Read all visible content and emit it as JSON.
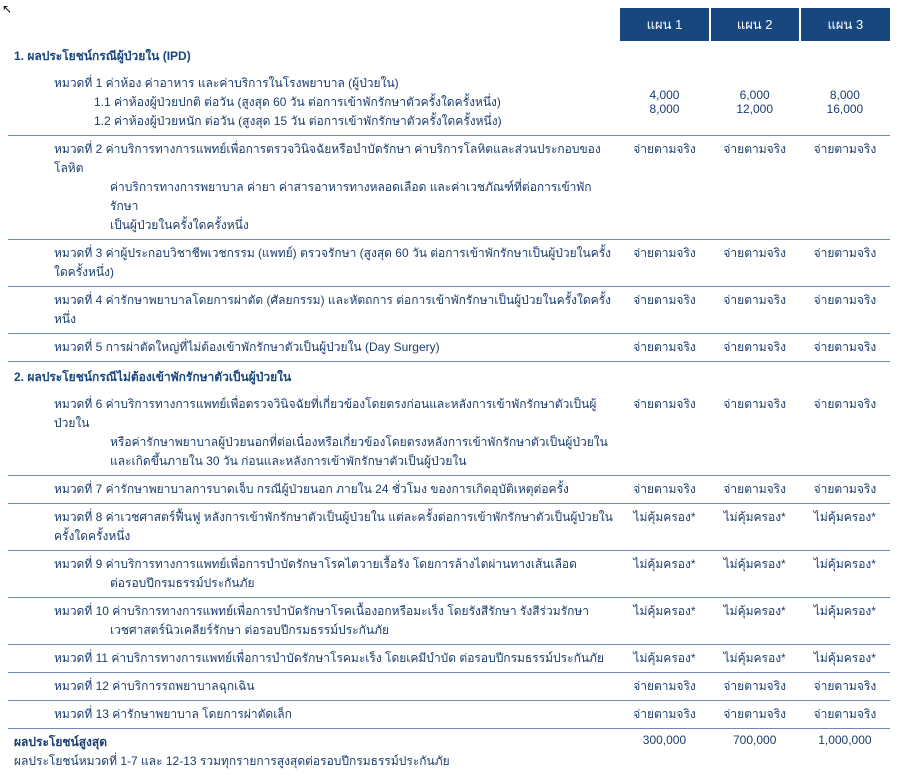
{
  "header": {
    "plan1": "แผน 1",
    "plan2": "แผน 2",
    "plan3": "แผน 3"
  },
  "section1": {
    "title": "1.  ผลประโยชน์กรณีผู้ป่วยใน (IPD)"
  },
  "r1": {
    "l1": "หมวดที่ 1 ค่าห้อง ค่าอาหาร และค่าบริการในโรงพยาบาล (ผู้ป่วยใน)",
    "l2": "1.1 ค่าห้องผู้ป่วยปกติ ต่อวัน (สูงสุด 60 วัน ต่อการเข้าพักรักษาตัวครั้งใดครั้งหนึ่ง)",
    "l3": "1.2 ค่าห้องผู้ป่วยหนัก ต่อวัน (สูงสุด 15 วัน ต่อการเข้าพักรักษาตัวครั้งใดครั้งหนึ่ง)",
    "p1a": "4,000",
    "p2a": "6,000",
    "p3a": "8,000",
    "p1b": "8,000",
    "p2b": "12,000",
    "p3b": "16,000"
  },
  "r2": {
    "l1": "หมวดที่ 2 ค่าบริการทางการแพทย์เพื่อการตรวจวินิจฉัยหรือบำบัดรักษา ค่าบริการโลหิตและส่วนประกอบของโลหิต",
    "l2": "ค่าบริการทางการพยาบาล ค่ายา ค่าสารอาหารทางหลอดเลือด  และค่าเวชภัณฑ์ที่ต่อการเข้าพักรักษา",
    "l3": "เป็นผู้ป่วยในครั้งใดครั้งหนึ่ง",
    "p1": "จ่ายตามจริง",
    "p2": "จ่ายตามจริง",
    "p3": "จ่ายตามจริง"
  },
  "r3": {
    "l1": "หมวดที่ 3 ค่าผู้ประกอบวิชาชีพเวชกรรม (แพทย์) ตรวจรักษา (สูงสุด 60 วัน ต่อการเข้าพักรักษาเป็นผู้ป่วยในครั้งใดครั้งหนึ่ง)",
    "p1": "จ่ายตามจริง",
    "p2": "จ่ายตามจริง",
    "p3": "จ่ายตามจริง"
  },
  "r4": {
    "l1": "หมวดที่ 4 ค่ารักษาพยาบาลโดยการผ่าตัด (ศัลยกรรม) และหัตถการ ต่อการเข้าพักรักษาเป็นผู้ป่วยในครั้งใดครั้งหนึ่ง",
    "p1": "จ่ายตามจริง",
    "p2": "จ่ายตามจริง",
    "p3": "จ่ายตามจริง"
  },
  "r5": {
    "l1": "หมวดที่ 5 การผ่าตัดใหญ่ที่ไม่ต้องเข้าพักรักษาตัวเป็นผู้ป่วยใน (Day Surgery)",
    "p1": "จ่ายตามจริง",
    "p2": "จ่ายตามจริง",
    "p3": "จ่ายตามจริง"
  },
  "section2": {
    "title": "2. ผลประโยชน์กรณีไม่ต้องเข้าพักรักษาตัวเป็นผู้ป่วยใน"
  },
  "r6": {
    "l1": "หมวดที่ 6 ค่าบริการทางการแพทย์เพื่อตรวจวินิจฉัยที่เกี่ยวข้องโดยตรงก่อนและหลังการเข้าพักรักษาตัวเป็นผู้ป่วยใน",
    "l2": "หรือค่ารักษาพยาบาลผู้ป่วยนอกที่ต่อเนื่องหรือเกี่ยวข้องโดยตรงหลังการเข้าพักรักษาตัวเป็นผู้ป่วยใน",
    "l3": "และเกิดขึ้นภายใน 30 วัน ก่อนและหลังการเข้าพักรักษาตัวเป็นผู้ป่วยใน",
    "p1": "จ่ายตามจริง",
    "p2": "จ่ายตามจริง",
    "p3": "จ่ายตามจริง"
  },
  "r7": {
    "l1": "หมวดที่ 7 ค่ารักษาพยาบาลการบาดเจ็บ กรณีผู้ป่วยนอก ภายใน 24 ชั่วโมง ของการเกิดอุบัติเหตุต่อครั้ง",
    "p1": "จ่ายตามจริง",
    "p2": "จ่ายตามจริง",
    "p3": "จ่ายตามจริง"
  },
  "r8": {
    "l1": "หมวดที่ 8 ค่าเวชศาสตร์ฟื้นฟู หลังการเข้าพักรักษาตัวเป็นผู้ป่วยใน แต่ละครั้งต่อการเข้าพักรักษาตัวเป็นผู้ป่วยในครั้งใดครั้งหนึ่ง",
    "p1": "ไม่คุ้มครอง*",
    "p2": "ไม่คุ้มครอง*",
    "p3": "ไม่คุ้มครอง*"
  },
  "r9": {
    "l1": "หมวดที่ 9 ค่าบริการทางการแพทย์เพื่อการบำบัดรักษาโรคไตวายเรื้อรัง โดยการล้างไตผ่านทางเส้นเลือด",
    "l2": "ต่อรอบปีกรมธรรม์ประกันภัย",
    "p1": "ไม่คุ้มครอง*",
    "p2": "ไม่คุ้มครอง*",
    "p3": "ไม่คุ้มครอง*"
  },
  "r10": {
    "l1": "หมวดที่ 10 ค่าบริการทางการแพทย์เพื่อการบำบัดรักษาโรคเนื้องอกหรือมะเร็ง โดยรังสีรักษา รังสีร่วมรักษา",
    "l2": "เวชศาสตร์นิวเคลียร์รักษา ต่อรอบปีกรมธรรม์ประกันภัย",
    "p1": "ไม่คุ้มครอง*",
    "p2": "ไม่คุ้มครอง*",
    "p3": "ไม่คุ้มครอง*"
  },
  "r11": {
    "l1": "หมวดที่ 11 ค่าบริการทางการแพทย์เพื่อการบำบัดรักษาโรคมะเร็ง โดยเคมีบำบัด ต่อรอบปีกรมธรรม์ประกันภัย",
    "p1": "ไม่คุ้มครอง*",
    "p2": "ไม่คุ้มครอง*",
    "p3": "ไม่คุ้มครอง*"
  },
  "r12": {
    "l1": "หมวดที่ 12 ค่าบริการรถพยาบาลฉุกเฉิน",
    "p1": "จ่ายตามจริง",
    "p2": "จ่ายตามจริง",
    "p3": "จ่ายตามจริง"
  },
  "r13": {
    "l1": "หมวดที่ 13 ค่ารักษาพยาบาล โดยการผ่าตัดเล็ก",
    "p1": "จ่ายตามจริง",
    "p2": "จ่ายตามจริง",
    "p3": "จ่ายตามจริง"
  },
  "max": {
    "title": "ผลประโยชน์สูงสุด",
    "sub": "ผลประโยชน์หมวดที่ 1-7 และ 12-13 รวมทุกรายการสูงสุดต่อรอบปีกรมธรรม์ประกันภัย",
    "p1": "300,000",
    "p2": "700,000",
    "p3": "1,000,000"
  }
}
